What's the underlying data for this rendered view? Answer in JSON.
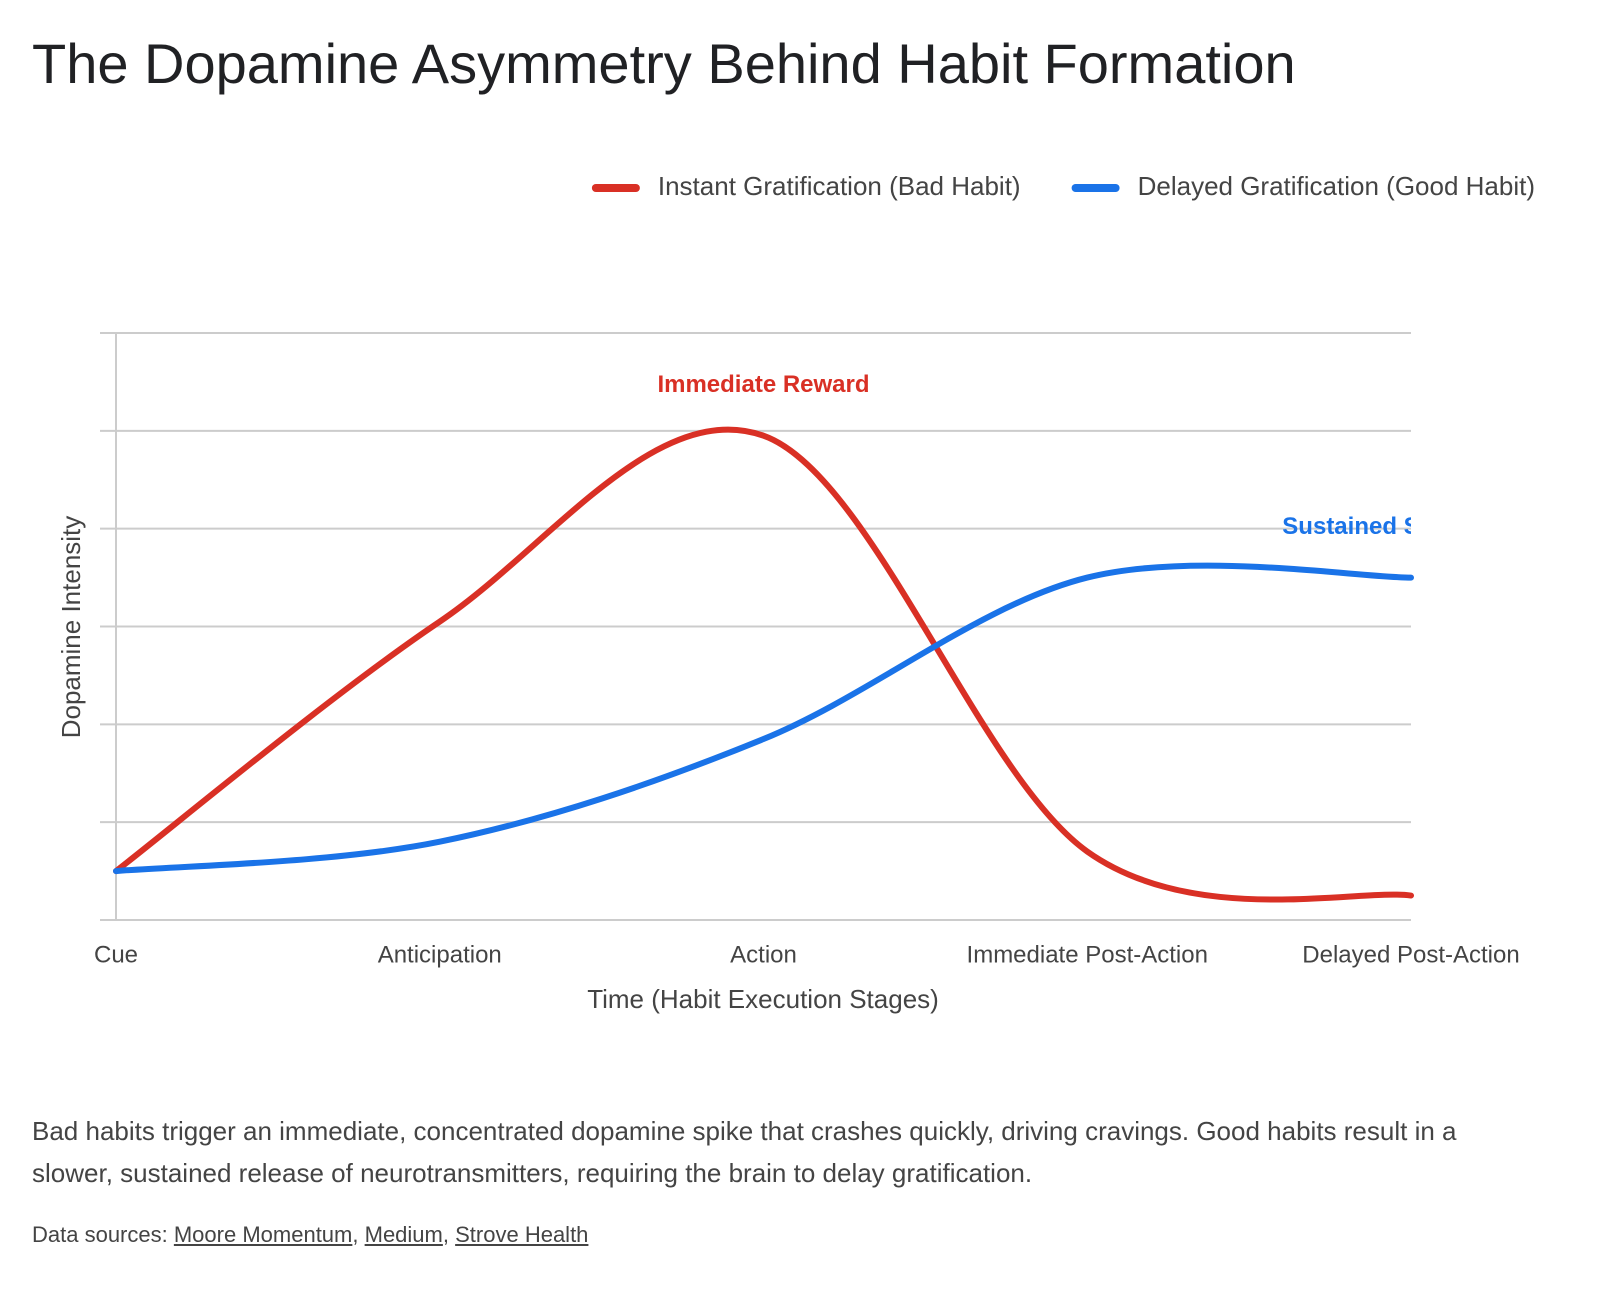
{
  "chart_data": {
    "type": "line",
    "title": "The Dopamine Asymmetry Behind Habit Formation",
    "x_label": "Time (Habit Execution Stages)",
    "y_label": "Dopamine Intensity",
    "categories": [
      "Cue",
      "Anticipation",
      "Action",
      "Immediate Post-Action",
      "Delayed Post-Action"
    ],
    "series": [
      {
        "name": "Instant Gratification (Bad Habit)",
        "color": "#d93025",
        "values": [
          0.5,
          3.05,
          4.95,
          0.7,
          0.25
        ],
        "annotations": [
          null,
          null,
          "Immediate Reward",
          null,
          null
        ]
      },
      {
        "name": "Delayed Gratification (Good Habit)",
        "color": "#1a73e8",
        "values": [
          0.5,
          0.8,
          1.85,
          3.5,
          3.5
        ],
        "annotations": [
          null,
          null,
          null,
          null,
          "Sustained Satisfaction"
        ]
      }
    ],
    "ylim": [
      0,
      6
    ],
    "yticks": [
      0,
      1,
      2,
      3,
      4,
      5,
      6
    ],
    "grid": true,
    "legend": "top-right"
  },
  "description": "Bad habits trigger an immediate, concentrated dopamine spike that crashes quickly, driving cravings. Good habits result in a slower, sustained release of neurotransmitters, requiring the brain to delay gratification.",
  "sources": {
    "label": "Data sources:",
    "separator": ",",
    "links": [
      "Moore Momentum",
      "Medium",
      "Strove Health"
    ]
  }
}
